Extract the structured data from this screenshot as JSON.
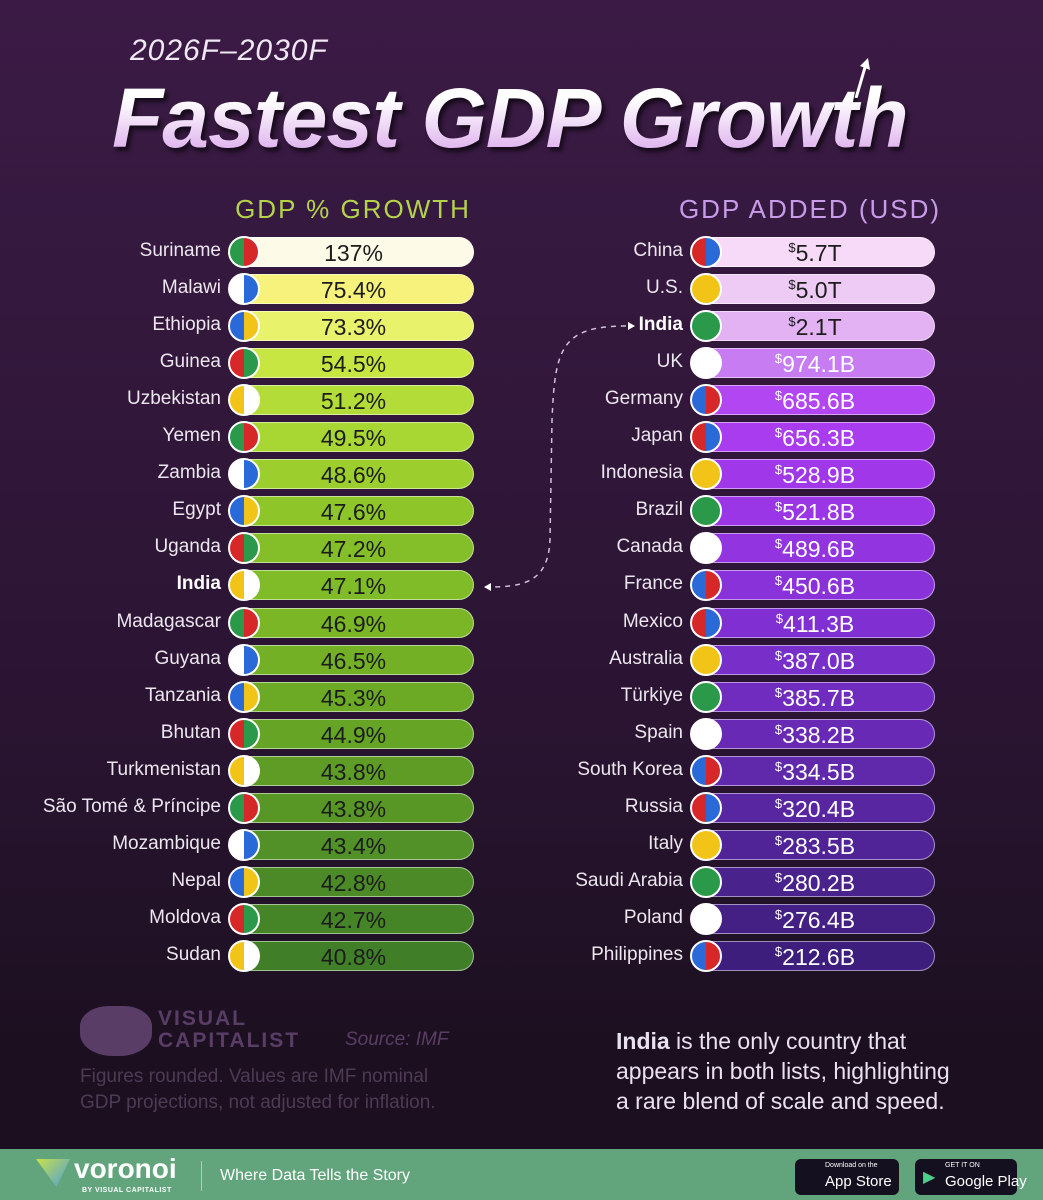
{
  "header": {
    "subtitle": "2026F–2030F",
    "title": "Fastest GDP Growth"
  },
  "chart_data": [
    {
      "type": "table",
      "title": "GDP % GROWTH",
      "unit": "%",
      "categories": [
        "Suriname",
        "Malawi",
        "Ethiopia",
        "Guinea",
        "Uzbekistan",
        "Yemen",
        "Zambia",
        "Egypt",
        "Uganda",
        "India",
        "Madagascar",
        "Guyana",
        "Tanzania",
        "Bhutan",
        "Turkmenistan",
        "São Tomé & Príncipe",
        "Mozambique",
        "Nepal",
        "Moldova",
        "Sudan"
      ],
      "labels": [
        "137%",
        "75.4%",
        "73.3%",
        "54.5%",
        "51.2%",
        "49.5%",
        "48.6%",
        "47.6%",
        "47.2%",
        "47.1%",
        "46.9%",
        "46.5%",
        "45.3%",
        "44.9%",
        "43.8%",
        "43.8%",
        "43.4%",
        "42.8%",
        "42.7%",
        "40.8%"
      ],
      "values": [
        137,
        75.4,
        73.3,
        54.5,
        51.2,
        49.5,
        48.6,
        47.6,
        47.2,
        47.1,
        46.9,
        46.5,
        45.3,
        44.9,
        43.8,
        43.8,
        43.4,
        42.8,
        42.7,
        40.8
      ],
      "highlight": "India",
      "colors": [
        "#fdfbe8",
        "#f6f27c",
        "#e8f26a",
        "#c8e642",
        "#b4dc38",
        "#a8d632",
        "#9cce2e",
        "#8ec62a",
        "#84be28",
        "#80bc28",
        "#7ab626",
        "#74b026",
        "#6caa26",
        "#66a426",
        "#5e9c26",
        "#589626",
        "#529028",
        "#4c8a28",
        "#468428",
        "#407e28"
      ]
    },
    {
      "type": "table",
      "title": "GDP ADDED (USD)",
      "unit": "USD",
      "categories": [
        "China",
        "U.S.",
        "India",
        "UK",
        "Germany",
        "Japan",
        "Indonesia",
        "Brazil",
        "Canada",
        "France",
        "Mexico",
        "Australia",
        "Türkiye",
        "Spain",
        "South Korea",
        "Russia",
        "Italy",
        "Saudi Arabia",
        "Poland",
        "Philippines"
      ],
      "labels": [
        "5.7T",
        "5.0T",
        "2.1T",
        "974.1B",
        "685.6B",
        "656.3B",
        "528.9B",
        "521.8B",
        "489.6B",
        "450.6B",
        "411.3B",
        "387.0B",
        "385.7B",
        "338.2B",
        "334.5B",
        "320.4B",
        "283.5B",
        "280.2B",
        "276.4B",
        "212.6B"
      ],
      "values": [
        5700,
        5000,
        2100,
        974.1,
        685.6,
        656.3,
        528.9,
        521.8,
        489.6,
        450.6,
        411.3,
        387.0,
        385.7,
        338.2,
        334.5,
        320.4,
        283.5,
        280.2,
        276.4,
        212.6
      ],
      "value_unit": "billion USD",
      "highlight": "India",
      "currency_symbol": "$",
      "colors": [
        "#f6daf8",
        "#eecbf5",
        "#e2b2f2",
        "#c87cf2",
        "#b246f2",
        "#a83cee",
        "#a038ea",
        "#9a36e6",
        "#9234e0",
        "#8a32da",
        "#8030d2",
        "#782ec8",
        "#702cbe",
        "#682ab4",
        "#6028aa",
        "#5826a0",
        "#502496",
        "#4a228c",
        "#442084",
        "#3e1e7c"
      ]
    }
  ],
  "notes": {
    "brand": "VISUAL CAPITALIST",
    "source": "Source: IMF",
    "disclaimer": "Figures rounded. Values are IMF nominal GDP projections, not adjusted for inflation.",
    "india_bold": "India",
    "india_text": " is the only country that appears in both lists, highlighting a rare blend of scale and speed."
  },
  "footer": {
    "brand": "voronoi",
    "by": "BY VISUAL CAPITALIST",
    "tagline": "Where Data Tells the Story",
    "app_store_small": "Download on the",
    "app_store": "App Store",
    "google_small": "GET IT ON",
    "google": "Google Play"
  }
}
